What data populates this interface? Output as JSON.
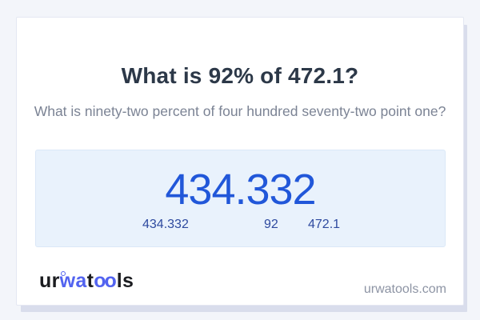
{
  "header": {
    "title": "What is 92% of 472.1?",
    "subtitle": "What is ninety-two percent of four hundred seventy-two point one?"
  },
  "result": {
    "value": "434.332",
    "breakdown": {
      "result": "434.332",
      "percent": "92",
      "base": "472.1"
    }
  },
  "footer": {
    "logo": {
      "name": "urwatools",
      "segments": [
        {
          "text": "ur",
          "style": "dark"
        },
        {
          "text": "wa",
          "style": "blue"
        },
        {
          "text": "t",
          "style": "dark"
        },
        {
          "text": "oo",
          "style": "blue"
        },
        {
          "text": "ls",
          "style": "dark"
        }
      ]
    },
    "domain": "urwatools.com"
  },
  "colors": {
    "page_background": "#f3f5fa",
    "card_background": "#ffffff",
    "card_border": "#e4e7f2",
    "card_shadow": "#d9ddec",
    "title_text": "#2c3848",
    "subtitle_text": "#7b8394",
    "result_box_background": "#e9f2fc",
    "result_box_border": "#dbe8f7",
    "result_value_text": "#2157d9",
    "breakdown_text": "#2e4a9f",
    "logo_dark": "#1b1c20",
    "logo_blue": "#5263f0",
    "domain_text": "#8d94a4"
  }
}
